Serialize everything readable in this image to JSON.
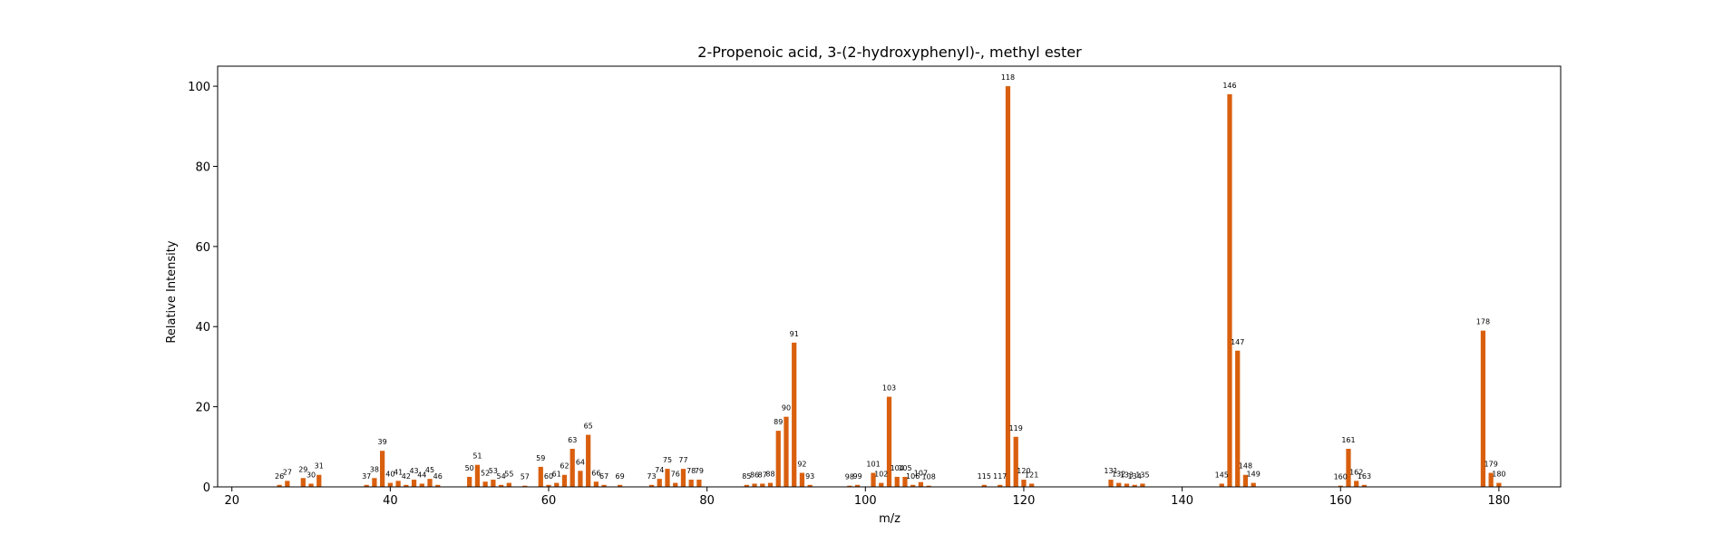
{
  "chart_data": {
    "type": "bar",
    "title": "2-Propenoic acid, 3-(2-hydroxyphenyl)-, methyl ester",
    "xlabel": "m/z",
    "ylabel": "Relative Intensity",
    "xlim": [
      18.2,
      187.8
    ],
    "ylim": [
      0,
      105
    ],
    "xticks": [
      20,
      40,
      60,
      80,
      100,
      120,
      140,
      160,
      180
    ],
    "yticks": [
      0,
      20,
      40,
      60,
      80,
      100
    ],
    "grid": false,
    "bar_color": "#d95f0e",
    "x": [
      26,
      27,
      29,
      30,
      31,
      37,
      38,
      39,
      40,
      41,
      42,
      43,
      44,
      45,
      46,
      50,
      51,
      52,
      53,
      54,
      55,
      57,
      59,
      60,
      61,
      62,
      63,
      64,
      65,
      66,
      67,
      69,
      73,
      74,
      75,
      76,
      77,
      78,
      79,
      85,
      86,
      87,
      88,
      89,
      90,
      91,
      92,
      93,
      98,
      99,
      101,
      102,
      103,
      104,
      105,
      106,
      107,
      108,
      115,
      117,
      118,
      119,
      120,
      121,
      131,
      132,
      133,
      134,
      135,
      145,
      146,
      147,
      148,
      149,
      160,
      161,
      162,
      163,
      178,
      179,
      180
    ],
    "values": [
      0.5,
      1.5,
      2.2,
      0.8,
      3.0,
      0.5,
      2.2,
      9.0,
      1.0,
      1.5,
      0.5,
      1.8,
      0.8,
      2.0,
      0.5,
      2.5,
      5.5,
      1.3,
      1.8,
      0.5,
      1.0,
      0.3,
      5.0,
      0.5,
      1.0,
      3.0,
      9.5,
      4.0,
      13.0,
      1.3,
      0.5,
      0.5,
      0.5,
      2.0,
      4.5,
      1.0,
      4.5,
      1.8,
      1.8,
      0.5,
      0.8,
      0.8,
      1.0,
      14.0,
      17.5,
      36.0,
      3.5,
      0.5,
      0.3,
      0.5,
      3.5,
      1.0,
      22.5,
      2.5,
      2.5,
      0.5,
      1.2,
      0.3,
      0.5,
      0.5,
      100.0,
      12.5,
      1.8,
      0.8,
      1.8,
      1.0,
      0.8,
      0.5,
      0.8,
      0.8,
      98.0,
      34.0,
      3.0,
      1.0,
      0.3,
      9.5,
      1.5,
      0.5,
      39.0,
      3.5,
      1.0
    ]
  }
}
